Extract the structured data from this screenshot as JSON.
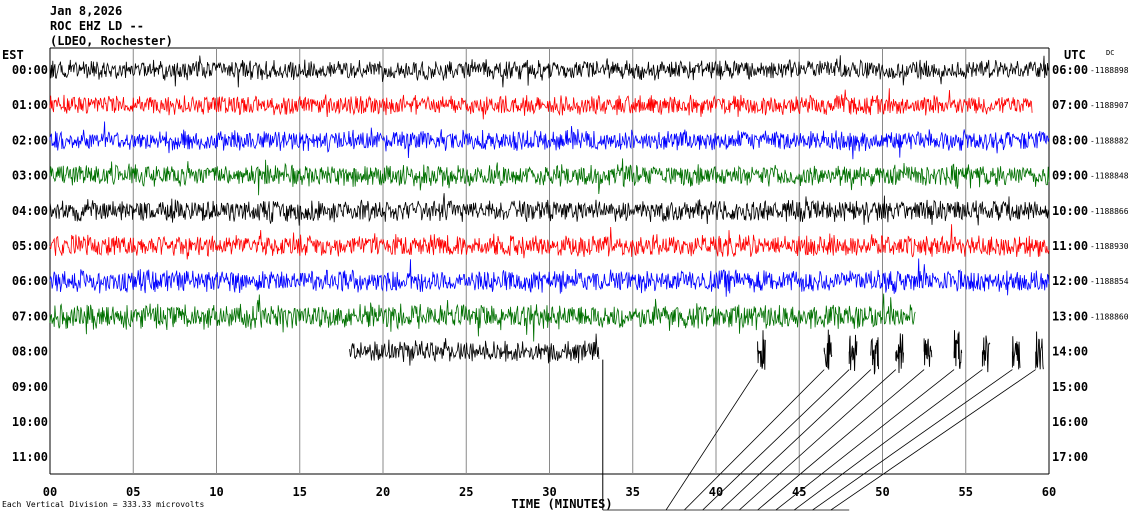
{
  "header": {
    "date": "Jan 8,2026",
    "station": "ROC EHZ LD --",
    "network": "(LDEO, Rochester)"
  },
  "footer": {
    "scale_label": "Each Vertical Division = 333.33 microvolts"
  },
  "chart_data": {
    "type": "line",
    "title": "",
    "xlabel": "TIME (MINUTES)",
    "left_axis_label": "EST",
    "right_axis_label": "UTC",
    "right_value_header": "DC",
    "xlim": [
      0,
      60
    ],
    "x_ticks": [
      "00",
      "05",
      "10",
      "15",
      "20",
      "25",
      "30",
      "35",
      "40",
      "45",
      "50",
      "55",
      "60"
    ],
    "grid": "vertical every 5 minutes",
    "trace_colors": [
      "#000000",
      "#ff0000",
      "#0000ff",
      "#007000"
    ],
    "rows": [
      {
        "est": "00:00",
        "utc": "06:00",
        "dc": "-1188898",
        "start_min": 0,
        "end_min": 60,
        "amplitude": 0.9
      },
      {
        "est": "01:00",
        "utc": "07:00",
        "dc": "-1188907",
        "start_min": 0,
        "end_min": 59,
        "amplitude": 0.9
      },
      {
        "est": "02:00",
        "utc": "08:00",
        "dc": "-1188882",
        "start_min": 0,
        "end_min": 60,
        "amplitude": 0.95
      },
      {
        "est": "03:00",
        "utc": "09:00",
        "dc": "-1188848",
        "start_min": 0,
        "end_min": 60,
        "amplitude": 1.0
      },
      {
        "est": "04:00",
        "utc": "10:00",
        "dc": "-1188866",
        "start_min": 0,
        "end_min": 60,
        "amplitude": 1.0
      },
      {
        "est": "05:00",
        "utc": "11:00",
        "dc": "-1188930",
        "start_min": 0,
        "end_min": 60,
        "amplitude": 1.0
      },
      {
        "est": "06:00",
        "utc": "12:00",
        "dc": "-1188854",
        "start_min": 0,
        "end_min": 60,
        "amplitude": 1.05
      },
      {
        "est": "07:00",
        "utc": "13:00",
        "dc": "-1188860",
        "start_min": 0,
        "end_min": 52,
        "amplitude": 1.15
      },
      {
        "est": "08:00",
        "utc": "14:00",
        "dc": "",
        "start_min": 18,
        "end_min": 33,
        "amplitude": 1.0
      },
      {
        "est": "09:00",
        "utc": "15:00",
        "dc": "",
        "start_min": 0,
        "end_min": 0,
        "amplitude": 0
      },
      {
        "est": "10:00",
        "utc": "16:00",
        "dc": "",
        "start_min": 0,
        "end_min": 0,
        "amplitude": 0
      },
      {
        "est": "11:00",
        "utc": "17:00",
        "dc": "",
        "start_min": 0,
        "end_min": 0,
        "amplitude": 0
      }
    ],
    "bursts_row8_min": [
      42.5,
      46.5,
      48.0,
      49.3,
      50.8,
      52.5,
      54.3,
      56.0,
      57.8,
      59.2
    ]
  }
}
